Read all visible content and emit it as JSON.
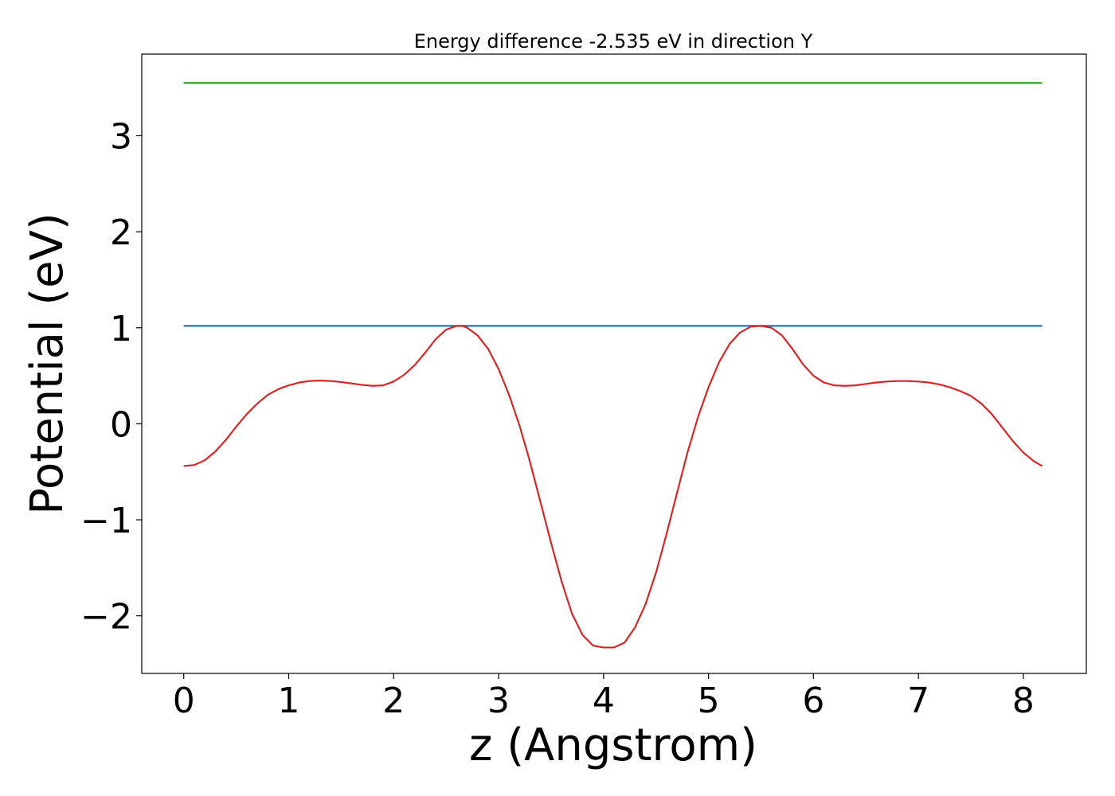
{
  "chart_data": {
    "type": "line",
    "title": "Energy difference -2.535 eV in direction Y",
    "xlabel": "z (Angstrom)",
    "ylabel": "Potential (eV)",
    "xlim": [
      -0.4,
      8.6
    ],
    "ylim": [
      -2.6,
      3.85
    ],
    "xticks": [
      0,
      1,
      2,
      3,
      4,
      5,
      6,
      7,
      8
    ],
    "xtick_labels": [
      "0",
      "1",
      "2",
      "3",
      "4",
      "5",
      "6",
      "7",
      "8"
    ],
    "yticks": [
      -2,
      -1,
      0,
      1,
      2,
      3
    ],
    "ytick_labels": [
      "−2",
      "−1",
      "0",
      "1",
      "2",
      "3"
    ],
    "grid": false,
    "series": [
      {
        "color": "#2ca02c",
        "x": [
          0,
          8.18
        ],
        "y": [
          3.55,
          3.55
        ]
      },
      {
        "color": "#1f77b4",
        "x": [
          0,
          8.18
        ],
        "y": [
          1.02,
          1.02
        ]
      },
      {
        "color": "#d62728",
        "x": [
          0,
          0.1,
          0.2,
          0.3,
          0.4,
          0.5,
          0.6,
          0.7,
          0.8,
          0.9,
          1.0,
          1.1,
          1.2,
          1.3,
          1.4,
          1.5,
          1.6,
          1.7,
          1.8,
          1.9,
          2.0,
          2.1,
          2.2,
          2.3,
          2.4,
          2.5,
          2.6,
          2.65,
          2.7,
          2.8,
          2.9,
          3.0,
          3.1,
          3.2,
          3.3,
          3.4,
          3.5,
          3.6,
          3.7,
          3.8,
          3.9,
          4.0,
          4.1,
          4.2,
          4.3,
          4.4,
          4.5,
          4.6,
          4.7,
          4.8,
          4.9,
          5.0,
          5.1,
          5.2,
          5.3,
          5.4,
          5.5,
          5.6,
          5.7,
          5.8,
          5.9,
          6.0,
          6.1,
          6.2,
          6.3,
          6.4,
          6.5,
          6.6,
          6.7,
          6.8,
          6.9,
          7.0,
          7.1,
          7.2,
          7.3,
          7.4,
          7.5,
          7.6,
          7.7,
          7.8,
          7.9,
          8.0,
          8.1,
          8.18
        ],
        "y": [
          -0.44,
          -0.43,
          -0.38,
          -0.29,
          -0.17,
          -0.03,
          0.1,
          0.21,
          0.3,
          0.36,
          0.4,
          0.43,
          0.445,
          0.45,
          0.445,
          0.435,
          0.42,
          0.405,
          0.395,
          0.4,
          0.44,
          0.51,
          0.61,
          0.74,
          0.88,
          0.98,
          1.02,
          1.02,
          1.0,
          0.92,
          0.78,
          0.57,
          0.3,
          -0.02,
          -0.4,
          -0.82,
          -1.24,
          -1.64,
          -1.98,
          -2.2,
          -2.31,
          -2.33,
          -2.33,
          -2.28,
          -2.12,
          -1.88,
          -1.55,
          -1.15,
          -0.72,
          -0.3,
          0.07,
          0.38,
          0.64,
          0.83,
          0.95,
          1.01,
          1.02,
          1.0,
          0.92,
          0.78,
          0.62,
          0.5,
          0.43,
          0.4,
          0.395,
          0.4,
          0.415,
          0.43,
          0.44,
          0.445,
          0.445,
          0.44,
          0.43,
          0.41,
          0.38,
          0.34,
          0.29,
          0.21,
          0.1,
          -0.04,
          -0.18,
          -0.3,
          -0.39,
          -0.44
        ]
      }
    ]
  }
}
